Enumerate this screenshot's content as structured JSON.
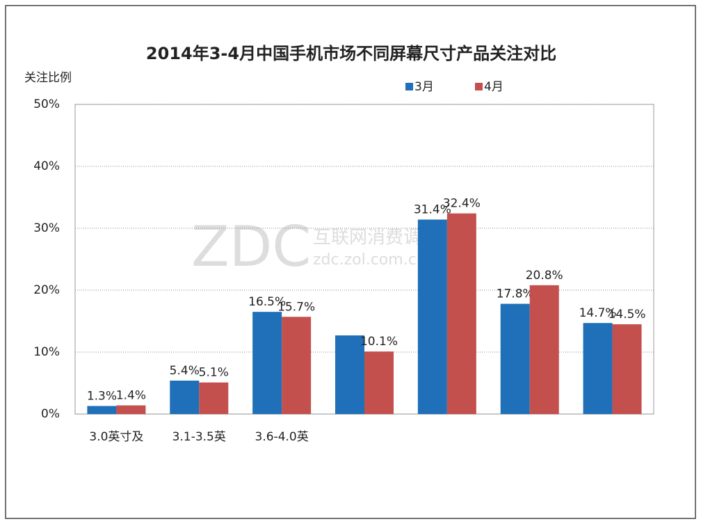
{
  "chart_data": {
    "type": "bar",
    "title": "2014年3-4月中国手机市场不同屏幕尺寸产品关注对比",
    "y_label": "关注比例",
    "watermark": [
      "ZDC",
      "互联网消费调研中心",
      "zdc.zol.com.cn"
    ],
    "categories": [
      "3.0英寸及",
      "3.1-3.5英",
      "3.6-4.0英",
      null,
      null,
      null,
      null
    ],
    "series": [
      {
        "name": "3月",
        "color": "#1f70b8",
        "values": [
          1.3,
          5.4,
          16.5,
          12.7,
          31.4,
          17.8,
          14.7
        ],
        "value_labels": [
          "1.3%",
          "5.4%",
          "16.5%",
          null,
          "31.4%",
          "17.8%",
          "14.7%"
        ]
      },
      {
        "name": "4月",
        "color": "#c4504d",
        "values": [
          1.4,
          5.1,
          15.7,
          10.1,
          32.4,
          20.8,
          14.5
        ],
        "value_labels": [
          "1.4%",
          "5.1%",
          "15.7%",
          "10.1%",
          "32.4%",
          "20.8%",
          "14.5%"
        ]
      }
    ],
    "ylim": [
      0,
      50
    ],
    "yticks": [
      {
        "value": 0,
        "label": "0%"
      },
      {
        "value": 10,
        "label": "10%"
      },
      {
        "value": 20,
        "label": "20%"
      },
      {
        "value": 30,
        "label": "30%"
      },
      {
        "value": 40,
        "label": "40%"
      },
      {
        "value": 50,
        "label": "50%"
      }
    ],
    "grid": true
  }
}
